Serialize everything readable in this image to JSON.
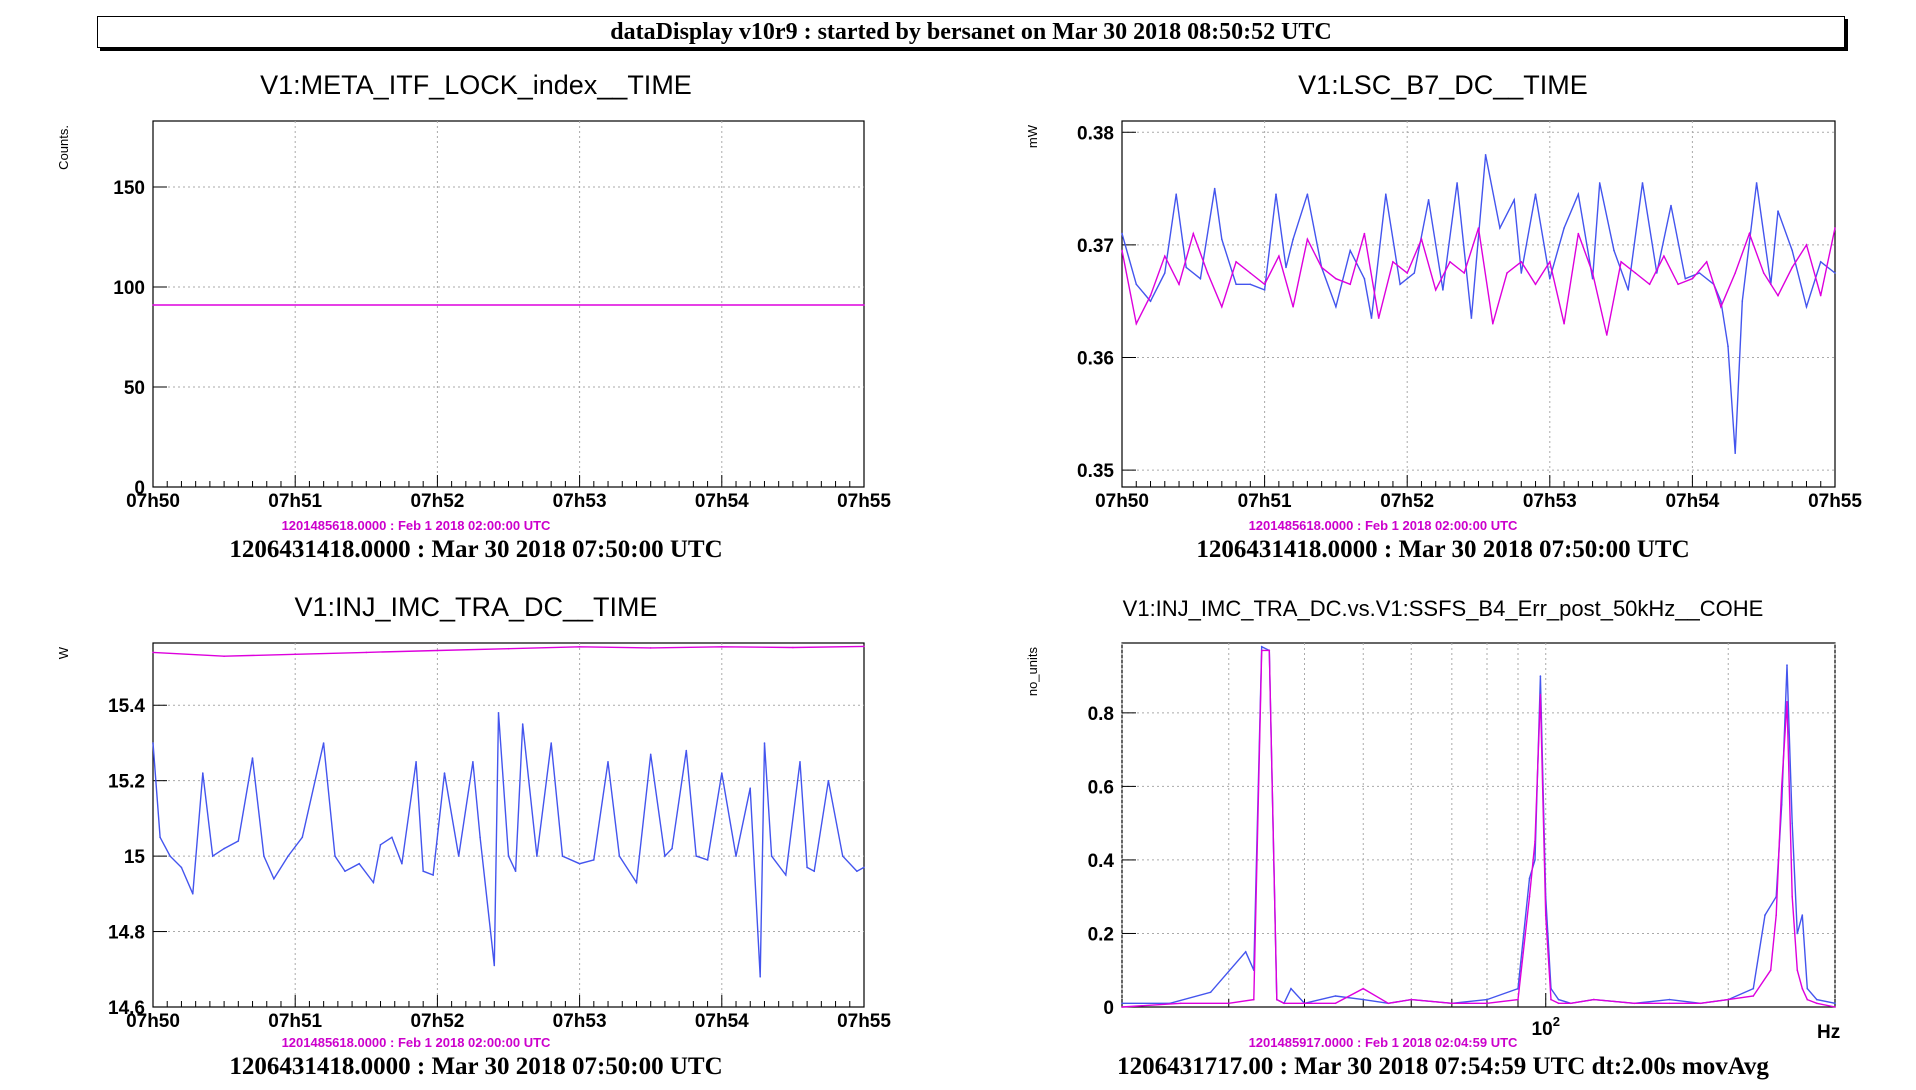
{
  "banner": "dataDisplay v10r9 : started by bersanet on Mar 30 2018 08:50:52 UTC",
  "colors": {
    "blue": "#4455ee",
    "magenta": "#dd00dd",
    "grid": "#aaaaaa"
  },
  "chart_data": [
    {
      "type": "line",
      "title": "V1:META_ITF_LOCK_index__TIME",
      "ylabel": "Counts.",
      "xlabel": "",
      "xlim": [
        0,
        5
      ],
      "ylim": [
        0,
        183
      ],
      "x_ticks": [
        "07h50",
        "07h51",
        "07h52",
        "07h53",
        "07h54",
        "07h55"
      ],
      "y_ticks": [
        0,
        50,
        100,
        150
      ],
      "y_tick_labels": [
        "0",
        "50",
        "100",
        "150"
      ],
      "grid": true,
      "reference_time": "1201485618.0000 : Feb  1 2018 02:00:00 UTC",
      "start_time": "1206431418.0000 : Mar 30 2018 07:50:00 UTC",
      "series": [
        {
          "color": "magenta",
          "x": [
            0,
            5
          ],
          "y": [
            91,
            91
          ]
        }
      ]
    },
    {
      "type": "line",
      "title": "V1:LSC_B7_DC__TIME",
      "ylabel": "mW",
      "xlabel": "",
      "xlim": [
        0,
        5
      ],
      "ylim": [
        0.3485,
        0.381
      ],
      "x_ticks": [
        "07h50",
        "07h51",
        "07h52",
        "07h53",
        "07h54",
        "07h55"
      ],
      "y_ticks": [
        0.35,
        0.36,
        0.37,
        0.38
      ],
      "y_tick_labels": [
        "0.35",
        "0.36",
        "0.37",
        "0.38"
      ],
      "grid": true,
      "reference_time": "1201485618.0000 : Feb  1 2018 02:00:00 UTC",
      "start_time": "1206431418.0000 : Mar 30 2018 07:50:00 UTC",
      "series": [
        {
          "color": "blue",
          "x": [
            0,
            0.1,
            0.2,
            0.3,
            0.38,
            0.45,
            0.55,
            0.65,
            0.7,
            0.8,
            0.9,
            1.0,
            1.08,
            1.15,
            1.2,
            1.3,
            1.4,
            1.5,
            1.6,
            1.7,
            1.75,
            1.85,
            1.95,
            2.05,
            2.15,
            2.25,
            2.35,
            2.45,
            2.55,
            2.65,
            2.75,
            2.8,
            2.9,
            3.0,
            3.1,
            3.2,
            3.3,
            3.35,
            3.45,
            3.55,
            3.65,
            3.75,
            3.85,
            3.95,
            4.05,
            4.15,
            4.2,
            4.25,
            4.3,
            4.35,
            4.45,
            4.55,
            4.6,
            4.7,
            4.8,
            4.9,
            5.0
          ],
          "y": [
            0.371,
            0.3665,
            0.365,
            0.3675,
            0.3745,
            0.368,
            0.367,
            0.375,
            0.3705,
            0.3665,
            0.3665,
            0.366,
            0.3745,
            0.368,
            0.3705,
            0.3745,
            0.368,
            0.3645,
            0.3695,
            0.367,
            0.3635,
            0.3745,
            0.3665,
            0.3675,
            0.374,
            0.366,
            0.3755,
            0.3635,
            0.378,
            0.3715,
            0.374,
            0.3675,
            0.3745,
            0.367,
            0.3715,
            0.3745,
            0.367,
            0.3755,
            0.3695,
            0.366,
            0.3755,
            0.3675,
            0.3735,
            0.367,
            0.3675,
            0.3665,
            0.365,
            0.361,
            0.3515,
            0.365,
            0.3755,
            0.3665,
            0.373,
            0.3695,
            0.3645,
            0.3685,
            0.3675
          ]
        },
        {
          "color": "magenta",
          "x": [
            0,
            0.1,
            0.2,
            0.3,
            0.4,
            0.5,
            0.6,
            0.7,
            0.8,
            0.9,
            1.0,
            1.1,
            1.2,
            1.3,
            1.4,
            1.5,
            1.6,
            1.7,
            1.8,
            1.9,
            2.0,
            2.1,
            2.2,
            2.3,
            2.4,
            2.5,
            2.6,
            2.7,
            2.8,
            2.9,
            3.0,
            3.1,
            3.2,
            3.3,
            3.4,
            3.5,
            3.6,
            3.7,
            3.8,
            3.9,
            4.0,
            4.1,
            4.2,
            4.3,
            4.4,
            4.5,
            4.6,
            4.7,
            4.8,
            4.9,
            5.0
          ],
          "y": [
            0.3695,
            0.363,
            0.3655,
            0.369,
            0.3665,
            0.371,
            0.3675,
            0.3645,
            0.3685,
            0.3675,
            0.3665,
            0.369,
            0.3645,
            0.3705,
            0.368,
            0.367,
            0.3665,
            0.371,
            0.3635,
            0.3685,
            0.3675,
            0.3705,
            0.366,
            0.3685,
            0.3675,
            0.3715,
            0.363,
            0.3675,
            0.3685,
            0.3665,
            0.3685,
            0.363,
            0.371,
            0.3675,
            0.362,
            0.3685,
            0.3675,
            0.3665,
            0.369,
            0.3665,
            0.367,
            0.3685,
            0.3645,
            0.3675,
            0.371,
            0.3675,
            0.3655,
            0.368,
            0.37,
            0.3655,
            0.3715
          ]
        }
      ]
    },
    {
      "type": "line",
      "title": "V1:INJ_IMC_TRA_DC__TIME",
      "ylabel": "W",
      "xlabel": "",
      "xlim": [
        0,
        5
      ],
      "ylim": [
        14.6,
        15.565
      ],
      "x_ticks": [
        "07h50",
        "07h51",
        "07h52",
        "07h53",
        "07h54",
        "07h55"
      ],
      "y_ticks": [
        14.6,
        14.8,
        15,
        15.2,
        15.4
      ],
      "y_tick_labels": [
        "14.6",
        "14.8",
        "15",
        "15.2",
        "15.4"
      ],
      "grid": true,
      "reference_time": "1201485618.0000 : Feb  1 2018 02:00:00 UTC",
      "start_time": "1206431418.0000 : Mar 30 2018 07:50:00 UTC",
      "series": [
        {
          "color": "magenta",
          "x": [
            0,
            0.5,
            1.0,
            1.5,
            2.0,
            2.5,
            3.0,
            3.5,
            4.0,
            4.5,
            5.0
          ],
          "y": [
            15.54,
            15.53,
            15.535,
            15.54,
            15.545,
            15.55,
            15.555,
            15.552,
            15.555,
            15.553,
            15.556
          ]
        },
        {
          "color": "blue",
          "x": [
            0,
            0.05,
            0.12,
            0.2,
            0.28,
            0.35,
            0.42,
            0.5,
            0.6,
            0.7,
            0.78,
            0.85,
            0.95,
            1.05,
            1.2,
            1.28,
            1.35,
            1.45,
            1.55,
            1.6,
            1.68,
            1.75,
            1.85,
            1.9,
            1.97,
            2.05,
            2.15,
            2.25,
            2.3,
            2.4,
            2.43,
            2.5,
            2.55,
            2.6,
            2.7,
            2.8,
            2.88,
            3.0,
            3.1,
            3.2,
            3.28,
            3.4,
            3.5,
            3.6,
            3.65,
            3.75,
            3.82,
            3.9,
            4.0,
            4.1,
            4.2,
            4.27,
            4.3,
            4.35,
            4.45,
            4.55,
            4.6,
            4.65,
            4.75,
            4.85,
            4.95,
            5.0
          ],
          "y": [
            15.3,
            15.05,
            15.0,
            14.97,
            14.9,
            15.22,
            15.0,
            15.02,
            15.04,
            15.26,
            15.0,
            14.94,
            15.0,
            15.05,
            15.3,
            15.0,
            14.96,
            14.98,
            14.93,
            15.03,
            15.05,
            14.98,
            15.25,
            14.96,
            14.95,
            15.22,
            15.0,
            15.25,
            15.05,
            14.71,
            15.38,
            15.0,
            14.96,
            15.35,
            15.0,
            15.3,
            15.0,
            14.98,
            14.99,
            15.25,
            15.0,
            14.93,
            15.27,
            15.0,
            15.02,
            15.28,
            15.0,
            14.99,
            15.22,
            15.0,
            15.18,
            14.68,
            15.3,
            15.0,
            14.95,
            15.25,
            14.97,
            14.96,
            15.2,
            15.0,
            14.96,
            14.97
          ]
        }
      ]
    },
    {
      "type": "line",
      "title": "V1:INJ_IMC_TRA_DC.vs.V1:SSFS_B4_Err_post_50kHz__COHE",
      "ylabel": "no_units",
      "xlabel": "Hz",
      "xscale": "log",
      "xlim": [
        20,
        300
      ],
      "ylim": [
        0,
        0.99
      ],
      "x_ticks": [
        "10^2"
      ],
      "y_ticks": [
        0,
        0.2,
        0.4,
        0.6,
        0.8
      ],
      "y_tick_labels": [
        "0",
        "0.2",
        "0.4",
        "0.6",
        "0.8"
      ],
      "grid": true,
      "reference_time": "1201485917.0000 : Feb  1 2018 02:04:59 UTC",
      "start_time": "1206431717.00 : Mar 30 2018 07:54:59 UTC dt:2.00s movAvg",
      "series": [
        {
          "color": "blue",
          "x": [
            20,
            24,
            28,
            32,
            33,
            34,
            35,
            36,
            37,
            38,
            40,
            45,
            50,
            55,
            60,
            70,
            80,
            90,
            94,
            96,
            98,
            100,
            102,
            105,
            110,
            120,
            140,
            160,
            180,
            200,
            220,
            230,
            240,
            245,
            250,
            255,
            260,
            265,
            270,
            280,
            300
          ],
          "y": [
            0.01,
            0.01,
            0.04,
            0.15,
            0.1,
            0.98,
            0.97,
            0.02,
            0.01,
            0.05,
            0.01,
            0.03,
            0.02,
            0.01,
            0.02,
            0.01,
            0.02,
            0.05,
            0.35,
            0.4,
            0.9,
            0.3,
            0.05,
            0.02,
            0.01,
            0.02,
            0.01,
            0.02,
            0.01,
            0.02,
            0.05,
            0.25,
            0.3,
            0.55,
            0.93,
            0.5,
            0.2,
            0.25,
            0.05,
            0.02,
            0.01
          ]
        },
        {
          "color": "magenta",
          "x": [
            20,
            25,
            30,
            33,
            34,
            35,
            36,
            37,
            40,
            45,
            50,
            55,
            60,
            70,
            80,
            90,
            94,
            96,
            98,
            100,
            102,
            105,
            110,
            120,
            140,
            160,
            180,
            200,
            220,
            235,
            240,
            245,
            250,
            255,
            260,
            265,
            270,
            280,
            300
          ],
          "y": [
            0.0,
            0.01,
            0.01,
            0.02,
            0.97,
            0.97,
            0.02,
            0.01,
            0.01,
            0.01,
            0.05,
            0.01,
            0.02,
            0.01,
            0.01,
            0.02,
            0.3,
            0.45,
            0.85,
            0.25,
            0.02,
            0.01,
            0.01,
            0.02,
            0.01,
            0.01,
            0.01,
            0.02,
            0.03,
            0.1,
            0.25,
            0.6,
            0.83,
            0.3,
            0.1,
            0.05,
            0.02,
            0.01,
            0.0
          ]
        }
      ]
    }
  ]
}
